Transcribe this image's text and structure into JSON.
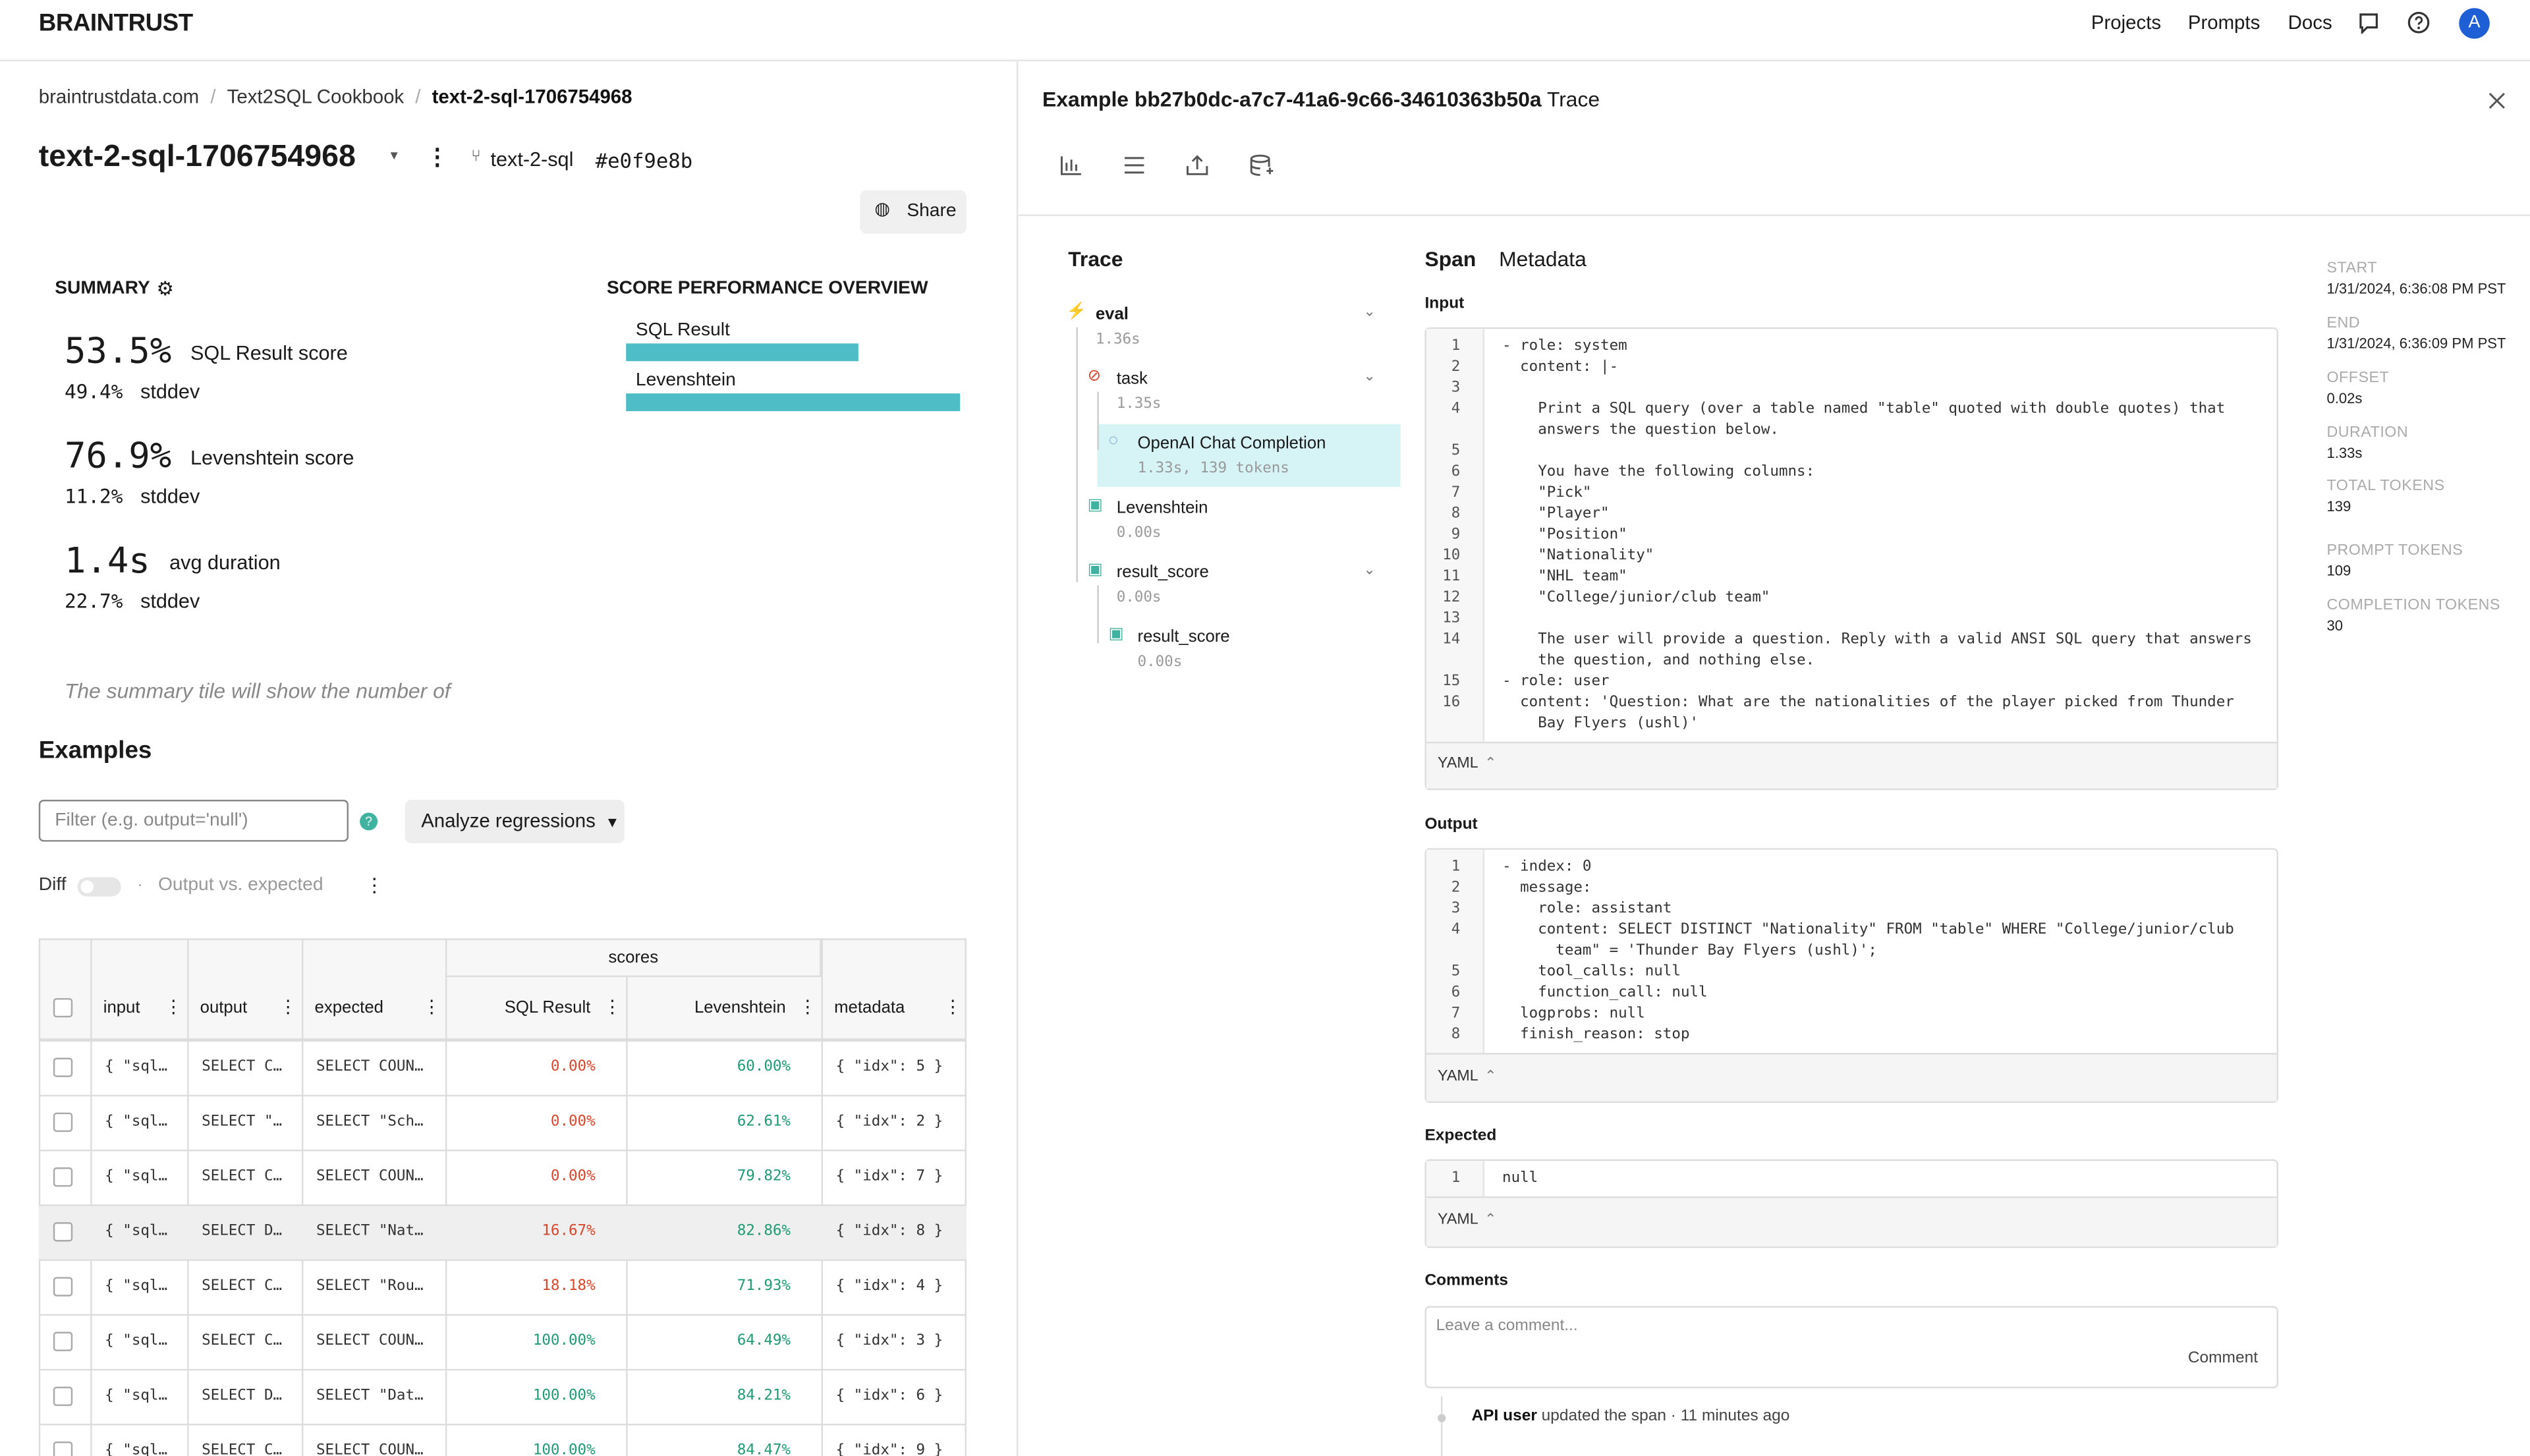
{
  "nav": {
    "logo": "BRAINTRUST",
    "links": [
      "Projects",
      "Prompts",
      "Docs"
    ],
    "avatar": "A"
  },
  "left": {
    "breadcrumb": [
      "braintrustdata.com",
      "Text2SQL Cookbook",
      "text-2-sql-1706754968"
    ],
    "title": "text-2-sql-1706754968",
    "branch": "text-2-sql",
    "commit": "#e0f9e8b",
    "share": "Share",
    "summary": {
      "heading": "SUMMARY",
      "metrics": [
        {
          "value": "53.5%",
          "label": "SQL Result score",
          "stddev": "49.4%",
          "stddev_label": "stddev"
        },
        {
          "value": "76.9%",
          "label": "Levenshtein score",
          "stddev": "11.2%",
          "stddev_label": "stddev"
        },
        {
          "value": "1.4s",
          "label": "avg duration",
          "stddev": "22.7%",
          "stddev_label": "stddev"
        }
      ],
      "note": "The summary tile will show the number of"
    },
    "score_overview": {
      "heading": "SCORE PERFORMANCE OVERVIEW",
      "bars": [
        {
          "name": "SQL Result",
          "value": 53.5
        },
        {
          "name": "Levenshtein",
          "value": 76.9
        }
      ]
    },
    "examples": {
      "heading": "Examples",
      "filter_placeholder": "Filter (e.g. output='null')",
      "analyze": "Analyze regressions",
      "diff": "Diff",
      "diff_note": "Output vs. expected",
      "group_header": "scores",
      "columns": [
        "input",
        "output",
        "expected",
        "SQL Result",
        "Levenshtein",
        "metadata"
      ],
      "rows": [
        [
          "{ \"sql…",
          "SELECT C…",
          "SELECT COUN…",
          "0.00%",
          "60.00%",
          "{ \"idx\": 5 }"
        ],
        [
          "{ \"sql…",
          "SELECT \"…",
          "SELECT \"Sch…",
          "0.00%",
          "62.61%",
          "{ \"idx\": 2 }"
        ],
        [
          "{ \"sql…",
          "SELECT C…",
          "SELECT COUN…",
          "0.00%",
          "79.82%",
          "{ \"idx\": 7 }"
        ],
        [
          "{ \"sql…",
          "SELECT D…",
          "SELECT \"Nat…",
          "16.67%",
          "82.86%",
          "{ \"idx\": 8 }"
        ],
        [
          "{ \"sql…",
          "SELECT C…",
          "SELECT \"Rou…",
          "18.18%",
          "71.93%",
          "{ \"idx\": 4 }"
        ],
        [
          "{ \"sql…",
          "SELECT C…",
          "SELECT COUN…",
          "100.00%",
          "64.49%",
          "{ \"idx\": 3 }"
        ],
        [
          "{ \"sql…",
          "SELECT D…",
          "SELECT \"Dat…",
          "100.00%",
          "84.21%",
          "{ \"idx\": 6 }"
        ],
        [
          "{ \"sql…",
          "SELECT C…",
          "SELECT COUN…",
          "100.00%",
          "84.47%",
          "{ \"idx\": 9 }"
        ]
      ]
    }
  },
  "right": {
    "title_prefix": "Example",
    "example_id": "bb27b0dc-a7c7-41a6-9c66-34610363b50a",
    "title_suffix": "Trace",
    "trace": {
      "heading": "Trace",
      "nodes": [
        {
          "name": "eval",
          "detail": "1.36s"
        },
        {
          "name": "task",
          "detail": "1.35s"
        },
        {
          "name": "OpenAI Chat Completion",
          "detail": "1.33s, 139 tokens"
        },
        {
          "name": "Levenshtein",
          "detail": "0.00s"
        },
        {
          "name": "result_score",
          "detail": "0.00s"
        },
        {
          "name": "result_score",
          "detail": "0.00s"
        }
      ]
    },
    "tabs": [
      "Span",
      "Metadata"
    ],
    "input": {
      "label": "Input",
      "format": "YAML",
      "lines": [
        {
          "n": 1,
          "text": "- role: system"
        },
        {
          "n": 2,
          "text": "  content: |-"
        },
        {
          "n": 3
        },
        {
          "n": 4,
          "text": "    Print a SQL query (over a table named \"table\" quoted with double quotes) that"
        },
        {
          "text": "    answers the question below."
        },
        {
          "n": 5
        },
        {
          "n": 6,
          "text": "    You have the following columns:"
        },
        {
          "n": 7,
          "text": "    \"Pick\""
        },
        {
          "n": 8,
          "text": "    \"Player\""
        },
        {
          "n": 9,
          "text": "    \"Position\""
        },
        {
          "n": 10,
          "text": "    \"Nationality\""
        },
        {
          "n": 11,
          "text": "    \"NHL team\""
        },
        {
          "n": 12,
          "text": "    \"College/junior/club team\""
        },
        {
          "n": 13
        },
        {
          "n": 14,
          "text": "    The user will provide a question. Reply with a valid ANSI SQL query that answers"
        },
        {
          "text": "    the question, and nothing else."
        },
        {
          "n": 15,
          "text": "- role: user"
        },
        {
          "n": 16,
          "text": "  content: 'Question: What are the nationalities of the player picked from Thunder"
        },
        {
          "text": "    Bay Flyers (ushl)'"
        }
      ]
    },
    "output": {
      "label": "Output",
      "format": "YAML",
      "lines": [
        {
          "n": 1,
          "text": "- index: 0"
        },
        {
          "n": 2,
          "text": "  message:"
        },
        {
          "n": 3,
          "text": "    role: assistant"
        },
        {
          "n": 4,
          "text": "    content: SELECT DISTINCT \"Nationality\" FROM \"table\" WHERE \"College/junior/club"
        },
        {
          "text": "      team\" = 'Thunder Bay Flyers (ushl)';"
        },
        {
          "n": 5,
          "text": "    tool_calls: null"
        },
        {
          "n": 6,
          "text": "    function_call: null"
        },
        {
          "n": 7,
          "text": "  logprobs: null"
        },
        {
          "n": 8,
          "text": "  finish_reason: stop"
        }
      ]
    },
    "expected": {
      "label": "Expected",
      "format": "YAML",
      "lines": [
        {
          "n": 1,
          "text": "null"
        }
      ]
    },
    "comments": {
      "label": "Comments",
      "placeholder": "Leave a comment...",
      "button": "Comment",
      "activity": {
        "user": "API user",
        "text": "updated the span · 11 minutes ago"
      }
    },
    "meta": [
      {
        "label": "START",
        "value": "1/31/2024, 6:36:08 PM PST"
      },
      {
        "label": "END",
        "value": "1/31/2024, 6:36:09 PM PST"
      },
      {
        "label": "OFFSET",
        "value": "0.02s"
      },
      {
        "label": "DURATION",
        "value": "1.33s"
      },
      {
        "label": "TOTAL TOKENS",
        "value": "139"
      },
      {
        "label": "PROMPT TOKENS",
        "value": "109"
      },
      {
        "label": "COMPLETION TOKENS",
        "value": "30"
      }
    ]
  }
}
